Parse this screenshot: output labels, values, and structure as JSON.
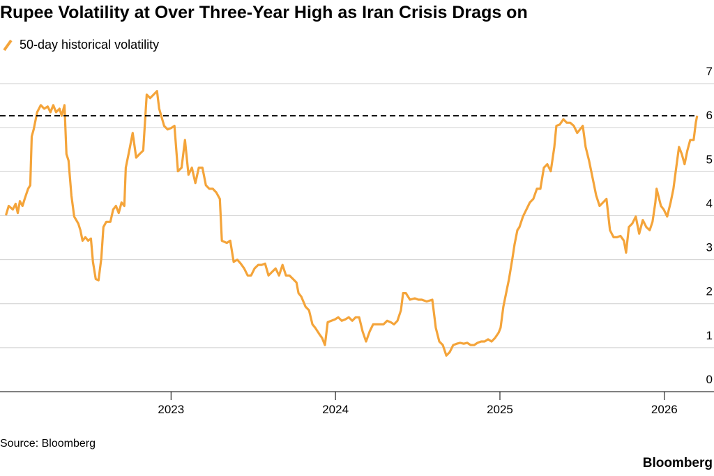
{
  "chart_data": {
    "type": "line",
    "title": "Rupee Volatility at Over Three-Year High as Iran Crisis Drags on",
    "source": "Source: Bloomberg",
    "brand": "Bloomberg",
    "xlim": [
      2021.96,
      2026.2
    ],
    "xticks": [
      2023,
      2024,
      2025,
      2026
    ],
    "ylim": [
      0,
      7
    ],
    "yticks": [
      0,
      1,
      2,
      3,
      4,
      5,
      6,
      7
    ],
    "grid": true,
    "reference_line": {
      "value": 6.27,
      "color": "#000000"
    },
    "x": [
      2021.996,
      2022.013,
      2022.038,
      2022.055,
      2022.068,
      2022.081,
      2022.097,
      2022.11,
      2022.131,
      2022.144,
      2022.153,
      2022.165,
      2022.186,
      2022.208,
      2022.229,
      2022.25,
      2022.267,
      2022.284,
      2022.301,
      2022.322,
      2022.335,
      2022.352,
      2022.364,
      2022.377,
      2022.394,
      2022.411,
      2022.436,
      2022.449,
      2022.462,
      2022.479,
      2022.496,
      2022.513,
      2022.525,
      2022.542,
      2022.559,
      2022.576,
      2022.589,
      2022.606,
      2022.631,
      2022.648,
      2022.665,
      2022.682,
      2022.699,
      2022.716,
      2022.725,
      2022.746,
      2022.767,
      2022.788,
      2022.809,
      2022.831,
      2022.852,
      2022.873,
      2022.894,
      2022.915,
      2022.928,
      2022.958,
      2022.979,
      2023.0,
      2023.021,
      2023.042,
      2023.064,
      2023.085,
      2023.106,
      2023.127,
      2023.148,
      2023.169,
      2023.191,
      2023.212,
      2023.233,
      2023.254,
      2023.275,
      2023.297,
      2023.309,
      2023.339,
      2023.36,
      2023.381,
      2023.403,
      2023.424,
      2023.445,
      2023.466,
      2023.487,
      2023.508,
      2023.53,
      2023.551,
      2023.572,
      2023.593,
      2023.614,
      2023.636,
      2023.657,
      2023.678,
      2023.699,
      2023.72,
      2023.742,
      2023.763,
      2023.775,
      2023.792,
      2023.818,
      2023.839,
      2023.86,
      2023.877,
      2023.903,
      2023.919,
      2023.936,
      2023.953,
      2023.975,
      2023.996,
      2024.017,
      2024.038,
      2024.059,
      2024.081,
      2024.102,
      2024.123,
      2024.144,
      2024.165,
      2024.186,
      2024.208,
      2024.229,
      2024.25,
      2024.271,
      2024.292,
      2024.314,
      2024.335,
      2024.356,
      2024.377,
      2024.398,
      2024.411,
      2024.428,
      2024.453,
      2024.483,
      2024.504,
      2024.525,
      2024.555,
      2024.589,
      2024.61,
      2024.631,
      2024.653,
      2024.674,
      2024.695,
      2024.716,
      2024.737,
      2024.758,
      2024.78,
      2024.801,
      2024.822,
      2024.843,
      2024.864,
      2024.886,
      2024.907,
      2024.928,
      2024.949,
      2024.97,
      2024.992,
      2025.004,
      2025.021,
      2025.042,
      2025.055,
      2025.076,
      2025.089,
      2025.106,
      2025.119,
      2025.14,
      2025.161,
      2025.182,
      2025.203,
      2025.225,
      2025.246,
      2025.267,
      2025.288,
      2025.309,
      2025.331,
      2025.343,
      2025.364,
      2025.386,
      2025.407,
      2025.428,
      2025.449,
      2025.47,
      2025.487,
      2025.504,
      2025.521,
      2025.542,
      2025.564,
      2025.585,
      2025.606,
      2025.627,
      2025.648,
      2025.669,
      2025.691,
      2025.712,
      2025.733,
      2025.754,
      2025.767,
      2025.784,
      2025.805,
      2025.826,
      2025.847,
      2025.869,
      2025.89,
      2025.911,
      2025.928,
      2025.945,
      2025.953,
      2025.979,
      2025.996,
      2026.017,
      2026.038,
      2026.055,
      2026.072,
      2026.089,
      2026.106,
      2026.123,
      2026.14,
      2026.157,
      2026.178,
      2026.191,
      2026.199
    ],
    "series": [
      {
        "name": "50-day historical volatility",
        "color": "#f4a43a",
        "values": [
          4.01,
          4.22,
          4.14,
          4.27,
          4.06,
          4.33,
          4.22,
          4.38,
          4.61,
          4.69,
          5.8,
          5.96,
          6.35,
          6.51,
          6.43,
          6.48,
          6.35,
          6.51,
          6.35,
          6.43,
          6.27,
          6.51,
          5.4,
          5.25,
          4.46,
          3.98,
          3.82,
          3.67,
          3.43,
          3.51,
          3.43,
          3.48,
          2.95,
          2.56,
          2.53,
          3.03,
          3.74,
          3.86,
          3.86,
          4.14,
          4.22,
          4.06,
          4.3,
          4.22,
          5.09,
          5.48,
          5.88,
          5.32,
          5.4,
          5.48,
          6.75,
          6.67,
          6.75,
          6.83,
          6.43,
          6.04,
          5.96,
          5.99,
          6.04,
          5.01,
          5.09,
          5.72,
          4.93,
          5.09,
          4.74,
          5.09,
          5.09,
          4.69,
          4.61,
          4.61,
          4.53,
          4.38,
          3.43,
          3.38,
          3.43,
          2.95,
          3.0,
          2.91,
          2.8,
          2.64,
          2.64,
          2.8,
          2.88,
          2.88,
          2.91,
          2.64,
          2.72,
          2.8,
          2.64,
          2.88,
          2.64,
          2.64,
          2.56,
          2.48,
          2.24,
          2.16,
          1.93,
          1.85,
          1.53,
          1.45,
          1.3,
          1.22,
          1.06,
          1.58,
          1.61,
          1.64,
          1.69,
          1.61,
          1.64,
          1.69,
          1.61,
          1.69,
          1.69,
          1.37,
          1.14,
          1.37,
          1.53,
          1.53,
          1.53,
          1.53,
          1.61,
          1.58,
          1.53,
          1.61,
          1.85,
          2.24,
          2.24,
          2.09,
          2.12,
          2.09,
          2.09,
          2.05,
          2.09,
          1.45,
          1.14,
          1.06,
          0.82,
          0.9,
          1.06,
          1.09,
          1.11,
          1.09,
          1.11,
          1.06,
          1.06,
          1.11,
          1.14,
          1.14,
          1.19,
          1.14,
          1.22,
          1.34,
          1.45,
          1.93,
          2.32,
          2.56,
          3.03,
          3.35,
          3.67,
          3.74,
          3.98,
          4.14,
          4.3,
          4.38,
          4.61,
          4.61,
          5.09,
          5.17,
          5.01,
          5.56,
          6.04,
          6.07,
          6.19,
          6.11,
          6.11,
          6.04,
          5.88,
          5.96,
          6.04,
          5.56,
          5.25,
          4.85,
          4.46,
          4.22,
          4.3,
          4.38,
          3.67,
          3.51,
          3.51,
          3.54,
          3.43,
          3.16,
          3.74,
          3.82,
          3.98,
          3.59,
          3.9,
          3.74,
          3.67,
          3.86,
          4.3,
          4.61,
          4.22,
          4.14,
          3.98,
          4.3,
          4.61,
          5.09,
          5.56,
          5.4,
          5.17,
          5.48,
          5.72,
          5.72,
          6.11,
          6.27
        ]
      }
    ]
  }
}
